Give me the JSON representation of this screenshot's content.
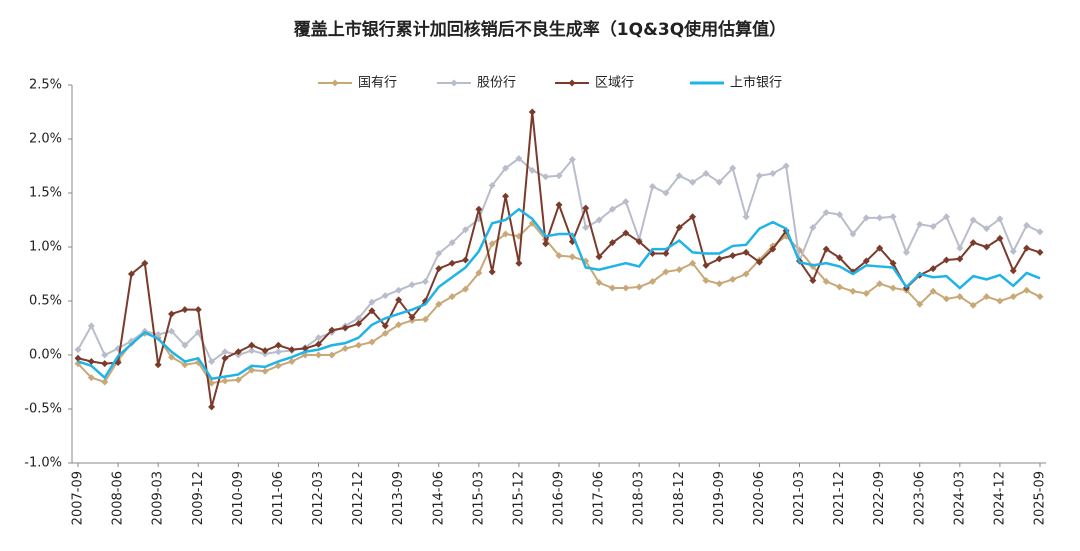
{
  "chart_data": {
    "type": "line",
    "title": "覆盖上市银行累计加回核销后不良生成率（1Q&3Q使用估算值）",
    "categories": [
      "2007-09",
      null,
      null,
      "2008-06",
      null,
      null,
      "2009-03",
      null,
      null,
      "2009-12",
      null,
      null,
      "2010-09",
      null,
      null,
      "2011-06",
      null,
      null,
      "2012-03",
      null,
      null,
      "2012-12",
      null,
      null,
      "2013-09",
      null,
      null,
      "2014-06",
      null,
      null,
      "2015-03",
      null,
      null,
      "2015-12",
      null,
      null,
      "2016-09",
      null,
      null,
      "2017-06",
      null,
      null,
      "2018-03",
      null,
      null,
      "2018-12",
      null,
      null,
      "2019-09",
      null,
      null,
      "2020-06",
      null,
      null,
      "2021-03",
      null,
      null,
      "2021-12",
      null,
      null,
      "2022-09",
      null,
      null,
      "2023-06",
      null,
      null,
      "2024-03",
      null,
      null,
      "2024-12",
      null,
      null,
      "2025-09"
    ],
    "series": [
      {
        "name": "国有行",
        "color": "#c9a877",
        "marker": true,
        "values": [
          -0.08,
          -0.21,
          -0.25,
          -0.05,
          0.11,
          0.2,
          0.16,
          -0.02,
          -0.09,
          -0.07,
          -0.26,
          -0.24,
          -0.23,
          -0.14,
          -0.15,
          -0.1,
          -0.06,
          0.0,
          0.0,
          0.0,
          0.06,
          0.09,
          0.12,
          0.2,
          0.28,
          0.32,
          0.33,
          0.47,
          0.54,
          0.61,
          0.76,
          1.03,
          1.12,
          1.1,
          1.22,
          1.07,
          0.92,
          0.91,
          0.87,
          0.67,
          0.62,
          0.62,
          0.63,
          0.68,
          0.77,
          0.79,
          0.85,
          0.69,
          0.66,
          0.7,
          0.75,
          0.88,
          1.01,
          1.1,
          0.97,
          0.82,
          0.68,
          0.63,
          0.59,
          0.57,
          0.66,
          0.62,
          0.6,
          0.47,
          0.59,
          0.52,
          0.54,
          0.46,
          0.54,
          0.5,
          0.54,
          0.6,
          0.54
        ]
      },
      {
        "name": "股份行",
        "color": "#b9bdcb",
        "marker": true,
        "values": [
          0.05,
          0.27,
          0.0,
          0.06,
          0.13,
          0.22,
          0.19,
          0.22,
          0.09,
          0.21,
          -0.06,
          0.03,
          0.0,
          0.04,
          0.01,
          0.03,
          0.04,
          0.07,
          0.16,
          0.21,
          0.27,
          0.34,
          0.49,
          0.55,
          0.6,
          0.65,
          0.68,
          0.94,
          1.04,
          1.16,
          1.26,
          1.57,
          1.73,
          1.82,
          1.71,
          1.65,
          1.66,
          1.81,
          1.18,
          1.25,
          1.35,
          1.42,
          1.07,
          1.56,
          1.5,
          1.66,
          1.6,
          1.68,
          1.6,
          1.73,
          1.28,
          1.66,
          1.68,
          1.75,
          0.87,
          1.18,
          1.32,
          1.3,
          1.12,
          1.27,
          1.27,
          1.28,
          0.95,
          1.21,
          1.19,
          1.28,
          0.99,
          1.25,
          1.17,
          1.26,
          0.96,
          1.2,
          1.14
        ]
      },
      {
        "name": "区域行",
        "color": "#7b3b2b",
        "marker": true,
        "values": [
          -0.03,
          -0.06,
          -0.08,
          -0.07,
          0.75,
          0.85,
          -0.09,
          0.38,
          0.42,
          0.42,
          -0.48,
          -0.03,
          0.03,
          0.09,
          0.04,
          0.09,
          0.05,
          0.06,
          0.1,
          0.23,
          0.25,
          0.29,
          0.41,
          0.27,
          0.51,
          0.35,
          0.5,
          0.8,
          0.85,
          0.88,
          1.35,
          0.77,
          1.47,
          0.85,
          2.25,
          1.03,
          1.39,
          1.05,
          1.36,
          0.91,
          1.04,
          1.13,
          1.05,
          0.94,
          0.94,
          1.18,
          1.28,
          0.83,
          0.89,
          0.92,
          0.95,
          0.86,
          0.98,
          1.15,
          0.87,
          0.69,
          0.98,
          0.9,
          0.77,
          0.87,
          0.99,
          0.85,
          0.62,
          0.74,
          0.8,
          0.88,
          0.89,
          1.04,
          1.0,
          1.08,
          0.78,
          0.99,
          0.95
        ]
      },
      {
        "name": "上市银行",
        "color": "#1fb4e8",
        "marker": false,
        "values": [
          -0.06,
          -0.1,
          -0.21,
          -0.01,
          0.1,
          0.21,
          0.15,
          0.03,
          -0.06,
          -0.03,
          -0.22,
          -0.2,
          -0.18,
          -0.1,
          -0.11,
          -0.06,
          -0.02,
          0.03,
          0.05,
          0.09,
          0.11,
          0.16,
          0.28,
          0.34,
          0.38,
          0.42,
          0.47,
          0.63,
          0.72,
          0.81,
          0.96,
          1.22,
          1.25,
          1.35,
          1.26,
          1.1,
          1.12,
          1.12,
          0.81,
          0.79,
          0.82,
          0.85,
          0.82,
          0.98,
          0.98,
          1.06,
          0.95,
          0.94,
          0.94,
          1.01,
          1.02,
          1.17,
          1.23,
          1.17,
          0.86,
          0.83,
          0.85,
          0.82,
          0.75,
          0.83,
          0.82,
          0.81,
          0.63,
          0.75,
          0.72,
          0.73,
          0.62,
          0.73,
          0.7,
          0.74,
          0.64,
          0.76,
          0.71
        ]
      }
    ],
    "ylim": [
      -1.0,
      2.5
    ],
    "yticks": [
      {
        "value": -1.0,
        "label": "-1.0%"
      },
      {
        "value": -0.5,
        "label": "-0.5%"
      },
      {
        "value": 0,
        "label": "0.0%"
      },
      {
        "value": 0.5,
        "label": "0.5%"
      },
      {
        "value": 1.0,
        "label": "1.0%"
      },
      {
        "value": 1.5,
        "label": "1.5%"
      },
      {
        "value": 2.0,
        "label": "2.0%"
      },
      {
        "value": 2.5,
        "label": "2.5%"
      }
    ],
    "grid": false,
    "legend": "top"
  }
}
